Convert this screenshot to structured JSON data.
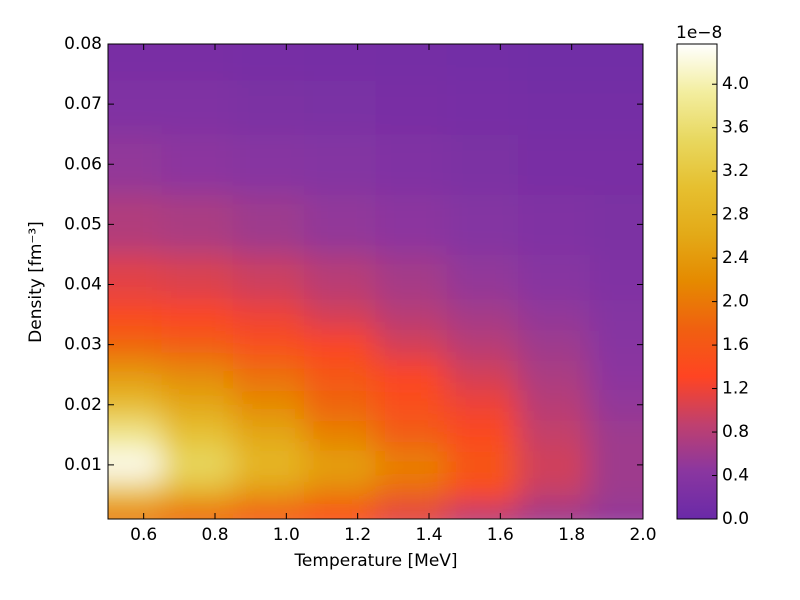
{
  "chart_data": {
    "type": "heatmap",
    "xlabel": "Temperature [MeV]",
    "ylabel": "Density [fm⁻³]",
    "x": [
      0.55,
      0.75,
      0.95,
      1.15,
      1.35,
      1.55,
      1.75,
      1.95
    ],
    "y": [
      0.002,
      0.005,
      0.01,
      0.015,
      0.02,
      0.025,
      0.03,
      0.035,
      0.04,
      0.05,
      0.06,
      0.07,
      0.078
    ],
    "z": [
      [
        2.0,
        1.8,
        1.6,
        1.4,
        1.1,
        0.8,
        0.6,
        0.5
      ],
      [
        3.2,
        2.8,
        2.4,
        2.1,
        1.8,
        1.4,
        0.9,
        0.6
      ],
      [
        4.3,
        3.5,
        2.9,
        2.5,
        2.1,
        1.6,
        1.0,
        0.6
      ],
      [
        3.8,
        3.1,
        2.6,
        2.1,
        1.7,
        1.4,
        0.9,
        0.6
      ],
      [
        3.0,
        2.6,
        2.2,
        1.8,
        1.5,
        1.2,
        0.8,
        0.5
      ],
      [
        2.4,
        2.2,
        1.9,
        1.6,
        1.3,
        1.0,
        0.7,
        0.45
      ],
      [
        1.8,
        1.7,
        1.5,
        1.3,
        1.0,
        0.8,
        0.6,
        0.4
      ],
      [
        1.4,
        1.3,
        1.2,
        1.0,
        0.8,
        0.65,
        0.5,
        0.35
      ],
      [
        1.1,
        1.05,
        0.95,
        0.8,
        0.65,
        0.5,
        0.4,
        0.3
      ],
      [
        0.75,
        0.7,
        0.6,
        0.5,
        0.45,
        0.35,
        0.3,
        0.25
      ],
      [
        0.5,
        0.45,
        0.4,
        0.35,
        0.3,
        0.25,
        0.2,
        0.2
      ],
      [
        0.3,
        0.3,
        0.25,
        0.22,
        0.2,
        0.18,
        0.15,
        0.15
      ],
      [
        0.2,
        0.2,
        0.18,
        0.16,
        0.14,
        0.12,
        0.1,
        0.1
      ]
    ],
    "xlim": [
      0.5,
      2.0
    ],
    "xticks": [
      0.6,
      0.8,
      {
        "value": 1.0,
        "label": "1.0"
      },
      1.2,
      1.4,
      1.6,
      1.8,
      {
        "value": 2.0,
        "label": "2.0"
      }
    ],
    "ylim": [
      0.001,
      0.08
    ],
    "yticks": [
      0.01,
      0.02,
      0.03,
      0.04,
      0.05,
      0.06,
      0.07,
      0.08
    ],
    "clim": [
      0,
      4.37
    ],
    "cticks": [
      {
        "value": 0,
        "label": "0.0"
      },
      0.4,
      0.8,
      1.2,
      1.6,
      {
        "value": 2,
        "label": "2.0"
      },
      2.4,
      2.8,
      3.2,
      3.6,
      {
        "value": 4,
        "label": "4.0"
      }
    ],
    "colorbar_offset": "1e−8",
    "colormap": [
      "#6a2aa8",
      "#8a36a0",
      "#c0406e",
      "#ff4422",
      "#f06010",
      "#e58a00",
      "#e3aa18",
      "#e6c030",
      "#e8d860",
      "#f3eea0",
      "#ffffff"
    ]
  }
}
